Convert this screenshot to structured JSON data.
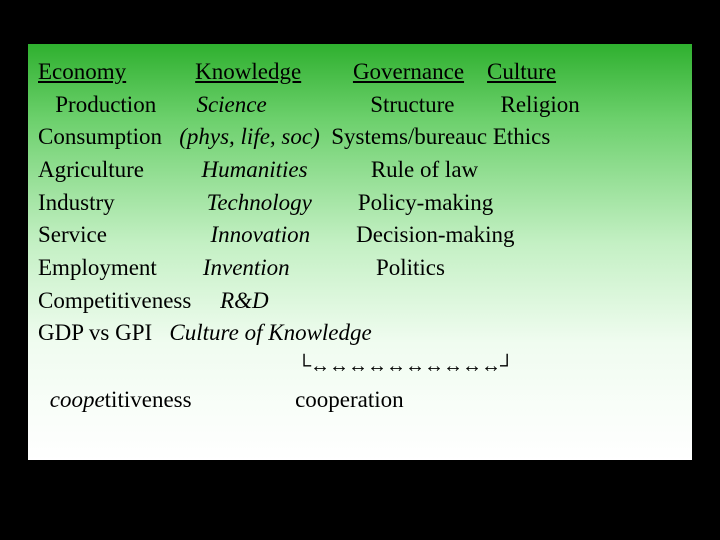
{
  "background_color": "#000000",
  "slide": {
    "gradient_top": "#2fb02f",
    "gradient_bottom": "#ffffff",
    "font_family": "Times New Roman",
    "font_size_pt": 18,
    "text_color": "#000000"
  },
  "headers": {
    "col1": "Economy",
    "col2": "Knowledge",
    "col3": "Governance",
    "col4": "Culture"
  },
  "rows": [
    {
      "c1": "   Production",
      "c2": "Science",
      "c2_italic": true,
      "c3": "Structure",
      "c4": "Religion"
    },
    {
      "c1": "Consumption",
      "c2": "(phys, life, soc)",
      "c2_italic": true,
      "c3": "Systems/bureauc",
      "c4": "Ethics"
    },
    {
      "c1": "Agriculture",
      "c2": "Humanities",
      "c2_italic": true,
      "c3": "Rule of law",
      "c4": ""
    },
    {
      "c1": "Industry",
      "c2": "Technology",
      "c2_italic": true,
      "c3": "Policy-making",
      "c4": ""
    },
    {
      "c1": "Service",
      "c2": "Innovation",
      "c2_italic": true,
      "c3": "Decision-making",
      "c4": ""
    },
    {
      "c1": "Employment",
      "c2": "Invention",
      "c2_italic": true,
      "c3": "Politics",
      "c4": ""
    },
    {
      "c1": "Competitiveness",
      "c2": "R&D",
      "c2_italic": true,
      "c3": "",
      "c4": ""
    },
    {
      "c1": "GDP vs GPI",
      "c2": "Culture of Knowledge",
      "c2_italic": true,
      "c3": "",
      "c4": ""
    }
  ],
  "arrows": {
    "left_corner": "└",
    "arrow": "↔",
    "count": 10,
    "right_corner": "┘"
  },
  "bottom": {
    "word1_prefix": "coope",
    "word1_rest": "titiveness",
    "gap": "                  ",
    "word2": "cooperation"
  }
}
